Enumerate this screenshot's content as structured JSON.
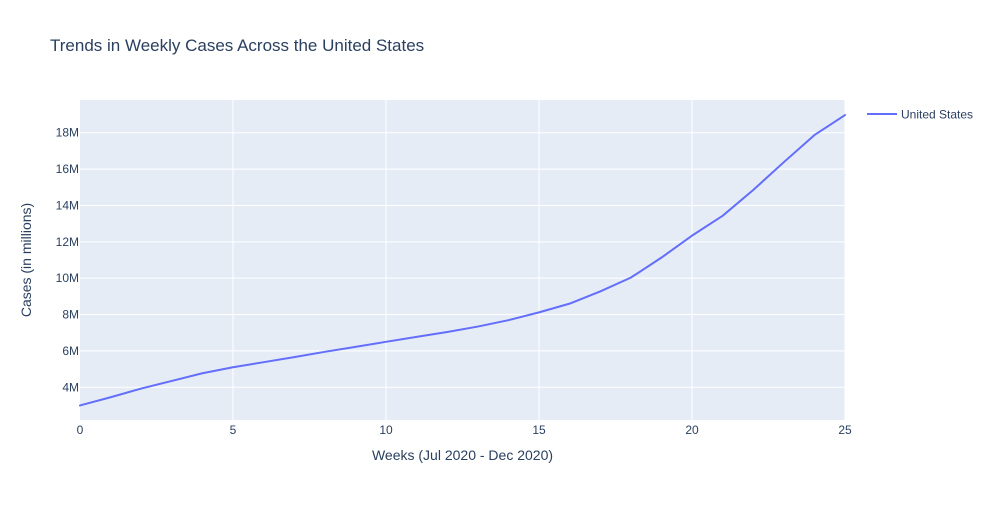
{
  "chart_data": {
    "type": "line",
    "title": "Trends in Weekly Cases Across the United States",
    "xlabel": "Weeks (Jul 2020 - Dec 2020)",
    "ylabel": "Cases (in millions)",
    "xlim": [
      0,
      25
    ],
    "ylim": [
      2200000,
      19800000
    ],
    "x_ticks": [
      0,
      5,
      10,
      15,
      20,
      25
    ],
    "x_tick_labels": [
      "0",
      "5",
      "10",
      "15",
      "20",
      "25"
    ],
    "y_ticks": [
      4000000,
      6000000,
      8000000,
      10000000,
      12000000,
      14000000,
      16000000,
      18000000
    ],
    "y_tick_labels": [
      "4M",
      "6M",
      "8M",
      "10M",
      "12M",
      "14M",
      "16M",
      "18M"
    ],
    "grid": true,
    "legend_position": "top-right",
    "x": [
      0,
      1,
      2,
      3,
      4,
      5,
      6,
      7,
      8,
      9,
      10,
      11,
      12,
      13,
      14,
      15,
      16,
      17,
      18,
      19,
      20,
      21,
      22,
      23,
      24,
      25
    ],
    "series": [
      {
        "name": "United States",
        "color": "#636efa",
        "values": [
          3000000,
          3450000,
          3930000,
          4350000,
          4770000,
          5100000,
          5380000,
          5660000,
          5950000,
          6220000,
          6500000,
          6770000,
          7040000,
          7340000,
          7690000,
          8120000,
          8600000,
          9270000,
          10030000,
          11130000,
          12340000,
          13430000,
          14850000,
          16380000,
          17870000,
          18970000
        ]
      }
    ],
    "colors": {
      "plot_background": "#e5ecf6",
      "grid": "#ffffff",
      "text": "#2a3f5f"
    }
  }
}
